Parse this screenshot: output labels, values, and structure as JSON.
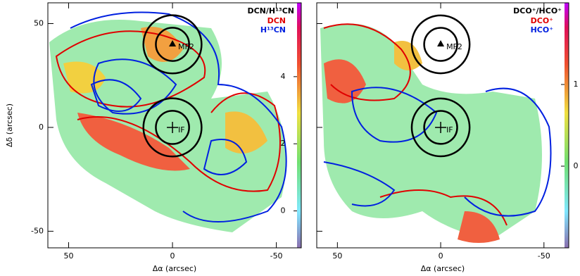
{
  "chart_data": [
    {
      "type": "map",
      "xlabel": "Δα (arcsec)",
      "ylabel": "Δδ (arcsec)",
      "legend_title": "DCN/H¹³CN",
      "series": [
        {
          "name": "DCN",
          "color": "#e00000"
        },
        {
          "name": "H¹³CN",
          "color": "#0020e0"
        }
      ],
      "xlim": [
        60,
        -62
      ],
      "ylim": [
        -58,
        60
      ],
      "xticks": [
        50,
        0,
        -50
      ],
      "yticks": [
        50,
        0,
        -50
      ],
      "colorbar": {
        "lim": [
          -1.1,
          6.2
        ],
        "ticks": [
          0,
          2,
          4
        ]
      },
      "sources": [
        {
          "label": "MF2",
          "x": 0,
          "y": 40
        },
        {
          "label": "IF",
          "x": 0,
          "y": 0
        }
      ],
      "circle_radii": [
        8,
        14
      ]
    },
    {
      "type": "map",
      "xlabel": "Δα (arcsec)",
      "legend_title": "DCO⁺/HCO⁺",
      "series": [
        {
          "name": "DCO⁺",
          "color": "#e00000"
        },
        {
          "name": "HCO⁺",
          "color": "#0020e0"
        }
      ],
      "xlim": [
        60,
        -62
      ],
      "ylim": [
        -58,
        60
      ],
      "xticks": [
        50,
        0,
        -50
      ],
      "yticks": [
        50,
        0,
        -50
      ],
      "colorbar": {
        "lim": [
          -1,
          2
        ],
        "ticks": [
          0,
          1
        ]
      },
      "sources": [
        {
          "label": "MF2",
          "x": 0,
          "y": 40
        },
        {
          "label": "IF",
          "x": 0,
          "y": 0
        }
      ],
      "circle_radii": [
        8,
        14
      ]
    }
  ]
}
